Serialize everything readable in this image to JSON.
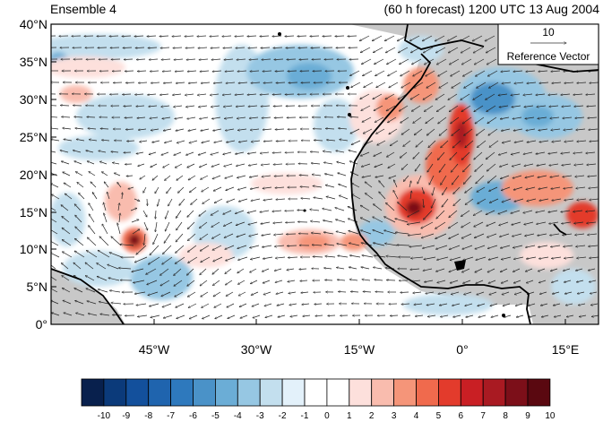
{
  "titles": {
    "left": "Ensemble 4",
    "right": "(60 h forecast) 1200 UTC 13 Aug 2004"
  },
  "reference_vector": {
    "magnitude": "10",
    "label": "Reference Vector"
  },
  "lat_labels": [
    "40°N",
    "35°N",
    "30°N",
    "25°N",
    "20°N",
    "15°N",
    "10°N",
    "5°N",
    "0°"
  ],
  "lon_labels": [
    "45°W",
    "30°W",
    "15°W",
    "0°",
    "15°E"
  ],
  "colorbar": {
    "labels": [
      "-10",
      "-9",
      "-8",
      "-7",
      "-6",
      "-5",
      "-4",
      "-3",
      "-2",
      "-1",
      "0",
      "1",
      "2",
      "3",
      "4",
      "5",
      "6",
      "7",
      "8",
      "9",
      "10"
    ],
    "colors": [
      "#08204d",
      "#0b3a7a",
      "#13509c",
      "#1f64ae",
      "#2e79bd",
      "#4a92c8",
      "#6badd6",
      "#96c7e3",
      "#c3dfee",
      "#e3f1fa",
      "#ffffff",
      "#ffffff",
      "#fde0dc",
      "#f9bcae",
      "#f59579",
      "#f06a4d",
      "#e33b2c",
      "#c91f24",
      "#a91a22",
      "#7c0f19",
      "#5a0810"
    ]
  },
  "map": {
    "land_color": "#c8c8c8",
    "coast_color": "#000000",
    "region": "0°–40°N, 60°W–20°E",
    "field": "shaded anomaly with wind vectors"
  }
}
